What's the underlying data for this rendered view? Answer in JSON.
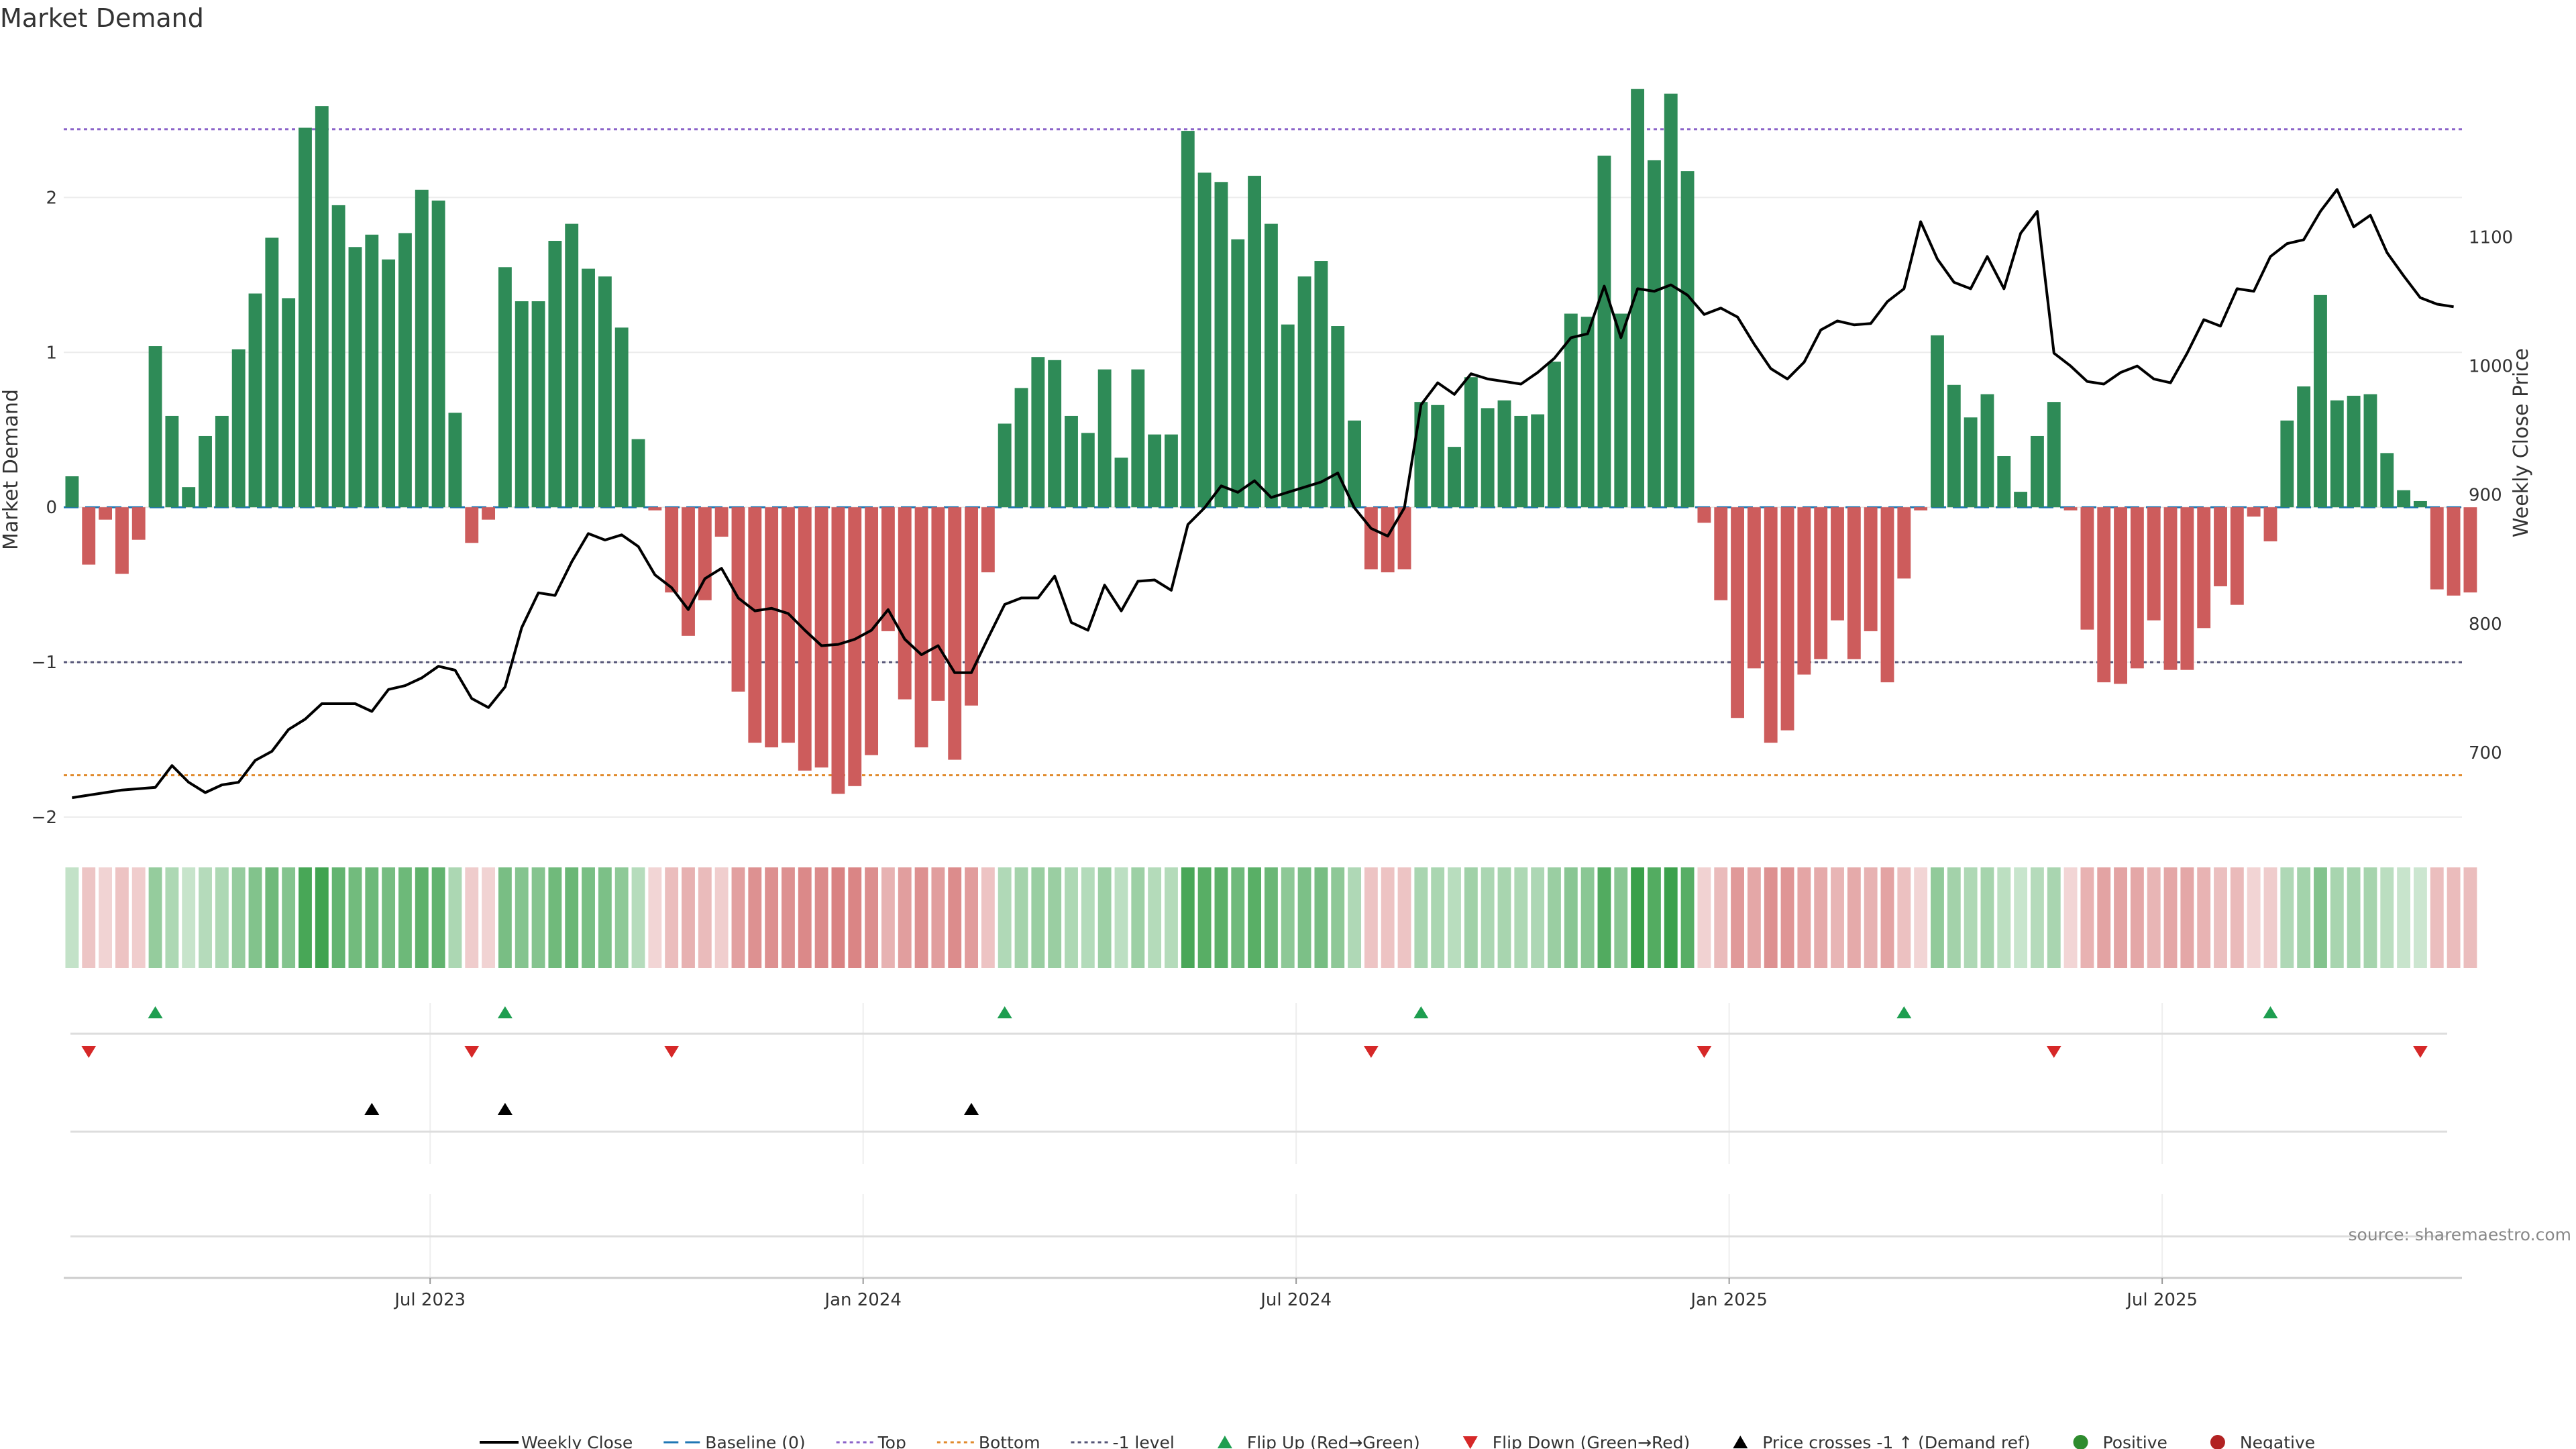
{
  "chart_data": {
    "type": "bar",
    "title": "Market Demand",
    "ylabel": "Market Demand",
    "y2label": "Weekly Close Price",
    "ylim": [
      -2.0,
      2.95
    ],
    "y2lim": [
      650,
      1245
    ],
    "yticks": [
      -2,
      -1,
      0,
      1,
      2
    ],
    "y2ticks": [
      700,
      800,
      900,
      1000,
      1100
    ],
    "x_ticks": [
      {
        "label": "Jul 2023",
        "week": 22
      },
      {
        "label": "Jan 2024",
        "week": 48
      },
      {
        "label": "Jul 2024",
        "week": 74
      },
      {
        "label": "Jan 2025",
        "week": 100
      },
      {
        "label": "Jul 2025",
        "week": 126
      }
    ],
    "weeks": 144,
    "reference_lines": [
      {
        "name": "Baseline (0)",
        "value": 0,
        "color": "#1f77b4",
        "dash": "long"
      },
      {
        "name": "Top",
        "value": 2.44,
        "color": "#8b63c9",
        "dash": "dot"
      },
      {
        "name": "Bottom",
        "value": -1.73,
        "color": "#e08a2c",
        "dash": "dot"
      },
      {
        "name": "-1 level",
        "value": -1.0,
        "color": "#555577",
        "dash": "dot"
      }
    ],
    "series": [
      {
        "name": "Market Demand",
        "kind": "bar",
        "values": [
          0.2,
          -0.37,
          -0.08,
          -0.43,
          -0.21,
          1.04,
          0.59,
          0.13,
          0.46,
          0.59,
          1.02,
          1.38,
          1.74,
          1.35,
          2.45,
          2.59,
          1.95,
          1.68,
          1.76,
          1.6,
          1.77,
          2.05,
          1.98,
          0.61,
          -0.23,
          -0.08,
          1.55,
          1.33,
          1.33,
          1.72,
          1.83,
          1.54,
          1.49,
          1.16,
          0.44,
          -0.02,
          -0.55,
          -0.83,
          -0.6,
          -0.19,
          -1.19,
          -1.52,
          -1.55,
          -1.52,
          -1.7,
          -1.68,
          -1.85,
          -1.8,
          -1.6,
          -0.8,
          -1.24,
          -1.55,
          -1.25,
          -1.63,
          -1.28,
          -0.42,
          0.54,
          0.77,
          0.97,
          0.95,
          0.59,
          0.48,
          0.89,
          0.32,
          0.89,
          0.47,
          0.47,
          2.43,
          2.16,
          2.1,
          1.73,
          2.14,
          1.83,
          1.18,
          1.49,
          1.59,
          1.17,
          0.56,
          -0.4,
          -0.42,
          -0.4,
          0.68,
          0.66,
          0.39,
          0.84,
          0.64,
          0.69,
          0.59,
          0.6,
          0.94,
          1.25,
          1.23,
          2.27,
          1.25,
          2.7,
          2.24,
          2.67,
          2.17,
          -0.1,
          -0.6,
          -1.36,
          -1.04,
          -1.52,
          -1.44,
          -1.08,
          -0.98,
          -0.73,
          -0.98,
          -0.8,
          -1.13,
          -0.46,
          -0.02,
          1.11,
          0.79,
          0.58,
          0.73,
          0.33,
          0.1,
          0.46,
          0.68,
          -0.02,
          -0.79,
          -1.13,
          -1.14,
          -1.04,
          -0.73,
          -1.05,
          -1.05,
          -0.78,
          -0.51,
          -0.63,
          -0.06,
          -0.22,
          0.56,
          0.78,
          1.37,
          0.69,
          0.72,
          0.73,
          0.35,
          0.11,
          0.04,
          -0.53,
          -0.57,
          -0.55
        ],
        "colors": {
          "positive": "#2e8b57",
          "negative": "#cd5c5c"
        }
      },
      {
        "name": "Weekly Close",
        "kind": "line",
        "axis": "y2",
        "color": "#000000",
        "values": [
          665,
          667,
          669,
          671,
          672,
          673,
          690,
          677,
          669,
          675,
          677,
          694,
          701,
          718,
          726,
          738,
          738,
          738,
          732,
          749,
          752,
          758,
          767,
          764,
          742,
          735,
          751,
          797,
          824,
          822,
          848,
          870,
          865,
          869,
          860,
          838,
          828,
          811,
          835,
          843,
          820,
          810,
          812,
          808,
          795,
          783,
          784,
          788,
          795,
          811,
          788,
          776,
          783,
          762,
          762,
          789,
          815,
          820,
          820,
          837,
          801,
          795,
          830,
          810,
          833,
          834,
          826,
          877,
          890,
          907,
          902,
          911,
          898,
          902,
          906,
          910,
          917,
          890,
          874,
          868,
          890,
          970,
          987,
          978,
          994,
          990,
          988,
          986,
          995,
          1006,
          1022,
          1025,
          1062,
          1022,
          1060,
          1058,
          1063,
          1055,
          1040,
          1045,
          1038,
          1017,
          998,
          990,
          1003,
          1028,
          1035,
          1032,
          1033,
          1050,
          1060,
          1112,
          1083,
          1065,
          1060,
          1085,
          1060,
          1103,
          1120,
          1010,
          1000,
          988,
          986,
          995,
          1000,
          990,
          987,
          1010,
          1036,
          1031,
          1060,
          1058,
          1085,
          1095,
          1098,
          1120,
          1137,
          1108,
          1117,
          1088,
          1070,
          1053,
          1048,
          1046
        ]
      }
    ],
    "color_strip": {
      "positive_base": "#3aa04a",
      "negative_base": "#cd5c5c"
    },
    "signals": {
      "flip_up": [
        5,
        26,
        56,
        81,
        110,
        132
      ],
      "flip_down": [
        1,
        24,
        36,
        78,
        98,
        119,
        141
      ],
      "price_crosses": [
        18,
        26,
        54
      ]
    },
    "source": "source: sharemaestro.com",
    "legend": [
      {
        "label": "Weekly Close",
        "kind": "line",
        "color": "#000000"
      },
      {
        "label": "Baseline (0)",
        "kind": "dash",
        "color": "#1f77b4"
      },
      {
        "label": "Top",
        "kind": "dot",
        "color": "#8b63c9"
      },
      {
        "label": "Bottom",
        "kind": "dot",
        "color": "#e08a2c"
      },
      {
        "label": "-1 level",
        "kind": "dot",
        "color": "#555577"
      },
      {
        "label": "Flip Up (Red→Green)",
        "kind": "tri-up",
        "color": "#1e9e50"
      },
      {
        "label": "Flip Down (Green→Red)",
        "kind": "tri-down",
        "color": "#d62828"
      },
      {
        "label": "Price crosses -1 ↑ (Demand ref)",
        "kind": "tri-up",
        "color": "#000000"
      },
      {
        "label": "Positive",
        "kind": "circle",
        "color": "#2e8b2e"
      },
      {
        "label": "Negative",
        "kind": "circle",
        "color": "#b22222"
      }
    ]
  }
}
